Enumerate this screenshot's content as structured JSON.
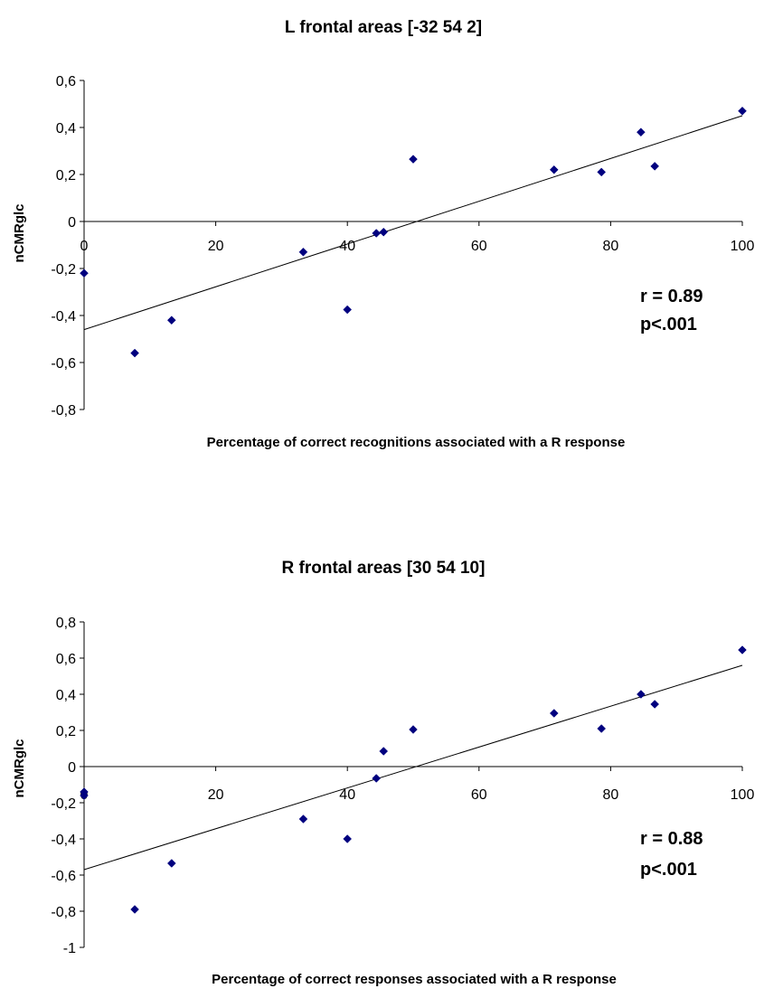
{
  "chart_data": [
    {
      "type": "scatter",
      "title": "L frontal areas [-32 54 2]",
      "xlabel": "Percentage of correct recognitions associated with a R response",
      "ylabel": "nCMRglc",
      "xlim": [
        0,
        100
      ],
      "ylim": [
        -0.8,
        0.6
      ],
      "x_ticks": [
        "0",
        "20",
        "40",
        "60",
        "80",
        "100"
      ],
      "y_ticks": [
        "-0,8",
        "-0,6",
        "-0,4",
        "-0,2",
        "0",
        "0,2",
        "0,4",
        "0,6"
      ],
      "points": [
        {
          "x": 0,
          "y": -0.22
        },
        {
          "x": 7.7,
          "y": -0.56
        },
        {
          "x": 13.3,
          "y": -0.42
        },
        {
          "x": 33.3,
          "y": -0.13
        },
        {
          "x": 40,
          "y": -0.375
        },
        {
          "x": 44.4,
          "y": -0.05
        },
        {
          "x": 45.5,
          "y": -0.045
        },
        {
          "x": 50,
          "y": 0.265
        },
        {
          "x": 71.4,
          "y": 0.22
        },
        {
          "x": 78.6,
          "y": 0.21
        },
        {
          "x": 84.6,
          "y": 0.38
        },
        {
          "x": 86.7,
          "y": 0.235
        },
        {
          "x": 100,
          "y": 0.47
        }
      ],
      "trendline": {
        "x": [
          0,
          100
        ],
        "y": [
          -0.46,
          0.45
        ]
      },
      "annotations": [
        "r = 0.89",
        "p<.001"
      ],
      "grid": false,
      "marker_color": "#00007f"
    },
    {
      "type": "scatter",
      "title": "R frontal areas [30 54 10]",
      "xlabel": "Percentage of correct responses associated with a R response",
      "ylabel": "nCMRglc",
      "xlim": [
        0,
        100
      ],
      "ylim": [
        -1,
        0.8
      ],
      "x_ticks": [
        "0",
        "20",
        "40",
        "60",
        "80",
        "100"
      ],
      "y_ticks": [
        "-1",
        "-0,8",
        "-0,6",
        "-0,4",
        "-0,2",
        "0",
        "0,2",
        "0,4",
        "0,6",
        "0,8"
      ],
      "points": [
        {
          "x": 0,
          "y": -0.14
        },
        {
          "x": 0,
          "y": -0.16
        },
        {
          "x": 7.7,
          "y": -0.79
        },
        {
          "x": 13.3,
          "y": -0.535
        },
        {
          "x": 33.3,
          "y": -0.29
        },
        {
          "x": 40,
          "y": -0.4
        },
        {
          "x": 44.4,
          "y": -0.065
        },
        {
          "x": 45.5,
          "y": 0.085
        },
        {
          "x": 50,
          "y": 0.205
        },
        {
          "x": 71.4,
          "y": 0.295
        },
        {
          "x": 78.6,
          "y": 0.21
        },
        {
          "x": 84.6,
          "y": 0.4
        },
        {
          "x": 86.7,
          "y": 0.345
        },
        {
          "x": 100,
          "y": 0.645
        }
      ],
      "trendline": {
        "x": [
          0,
          100
        ],
        "y": [
          -0.57,
          0.56
        ]
      },
      "annotations": [
        "r = 0.88",
        "p<.001"
      ],
      "grid": false,
      "marker_color": "#00007f"
    }
  ]
}
